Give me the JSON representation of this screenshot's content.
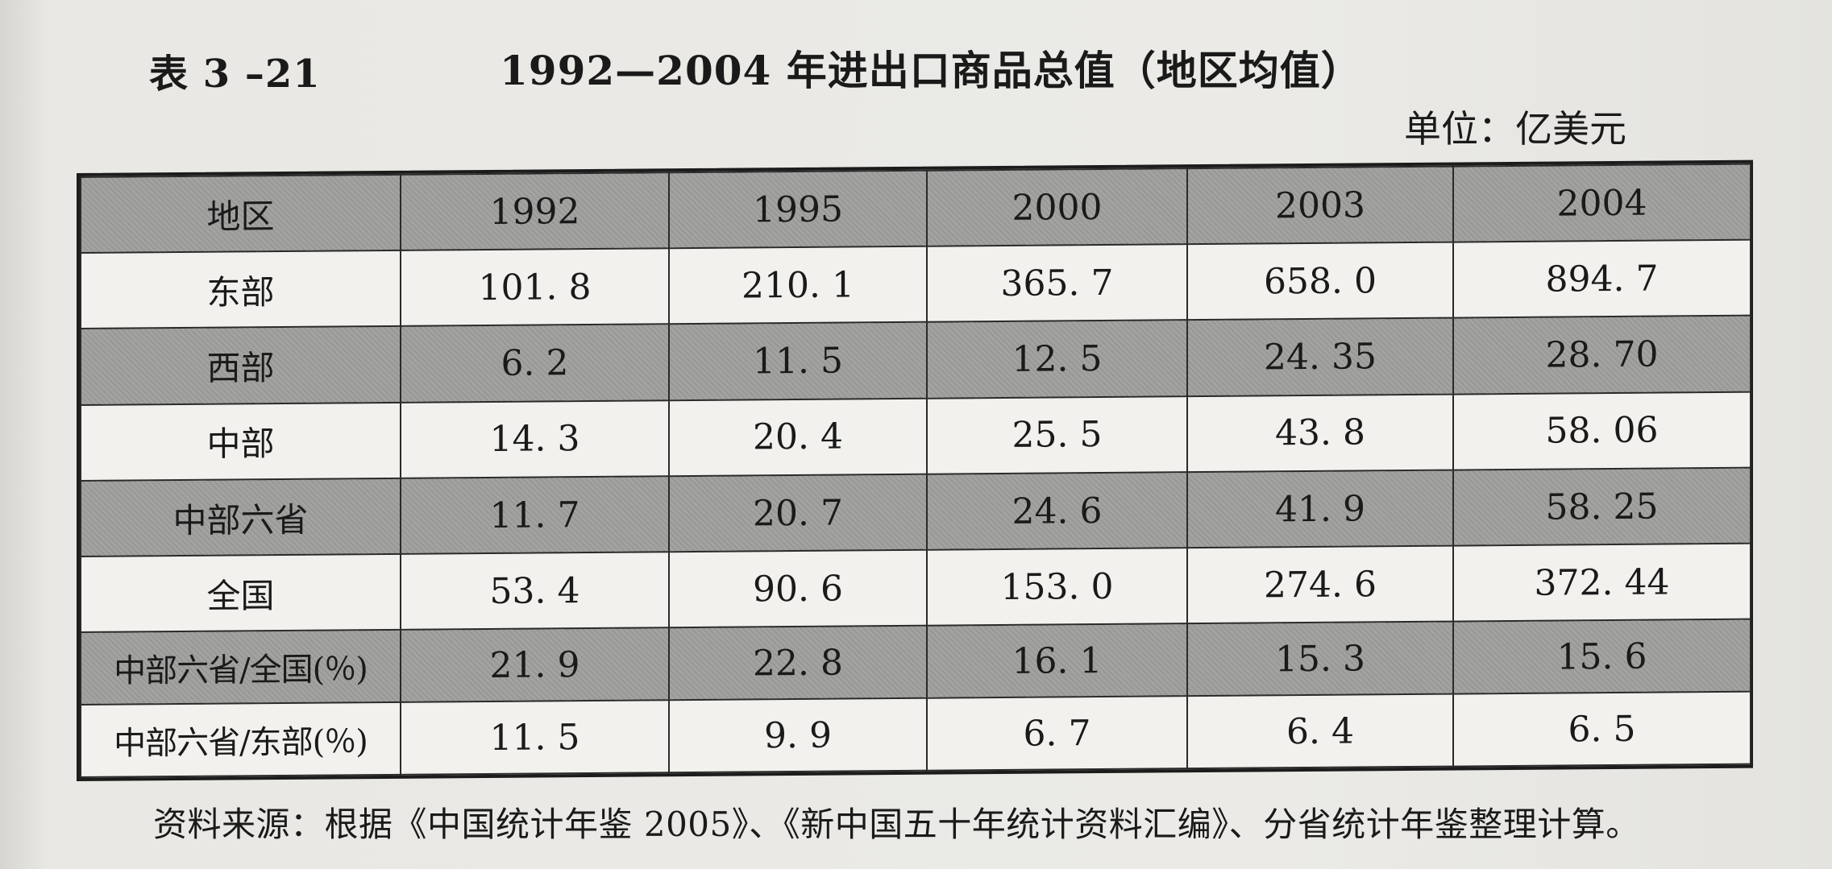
{
  "table_number": "表 3 –21",
  "title": "1992—2004 年进出口商品总值（地区均值）",
  "unit": "单位：亿美元",
  "table": {
    "headers": [
      "地区",
      "1992",
      "1995",
      "2000",
      "2003",
      "2004"
    ],
    "rows": [
      [
        "东部",
        "101. 8",
        "210. 1",
        "365. 7",
        "658. 0",
        "894. 7"
      ],
      [
        "西部",
        "6. 2",
        "11. 5",
        "12. 5",
        "24. 35",
        "28. 70"
      ],
      [
        "中部",
        "14. 3",
        "20. 4",
        "25. 5",
        "43. 8",
        "58. 06"
      ],
      [
        "中部六省",
        "11. 7",
        "20. 7",
        "24. 6",
        "41. 9",
        "58. 25"
      ],
      [
        "全国",
        "53. 4",
        "90. 6",
        "153. 0",
        "274. 6",
        "372. 44"
      ],
      [
        "中部六省/全国(％)",
        "21. 9",
        "22. 8",
        "16. 1",
        "15. 3",
        "15. 6"
      ],
      [
        "中部六省/东部(％)",
        "11. 5",
        "9. 9",
        "6. 7",
        "6. 4",
        "6. 5"
      ]
    ]
  },
  "source": "资料来源：根据《中国统计年鉴 2005》、《新中国五十年统计资料汇编》、分省统计年鉴整理计算。"
}
